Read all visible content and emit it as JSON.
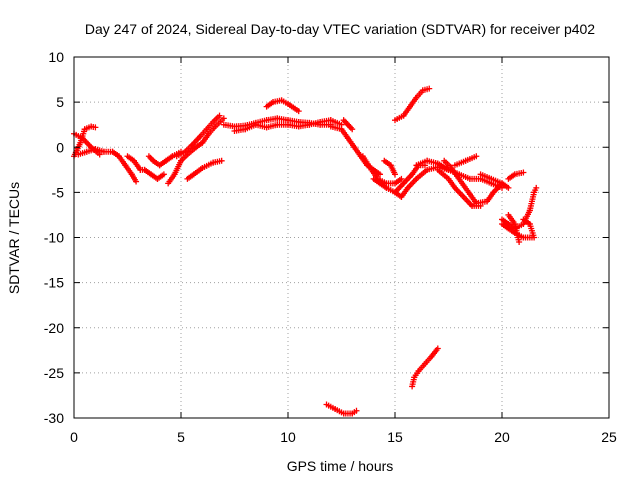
{
  "chart_data": {
    "type": "scatter",
    "title": "Day 247 of 2024, Sidereal Day-to-day VTEC variation (SDTVAR) for receiver p402",
    "xlabel": "GPS time / hours",
    "ylabel": "SDTVAR / TECUs",
    "xlim": [
      0,
      25
    ],
    "ylim": [
      -30,
      10
    ],
    "xticks": [
      "0",
      "5",
      "10",
      "15",
      "20",
      "25"
    ],
    "yticks": [
      "10",
      "5",
      "0",
      "-5",
      "-10",
      "-15",
      "-20",
      "-25",
      "-30"
    ],
    "grid": true,
    "marker": "+",
    "color": "#ff0000",
    "series": [
      {
        "name": "SDTVAR",
        "segments": [
          [
            [
              0.0,
              -1.0
            ],
            [
              0.3,
              0.5
            ],
            [
              0.5,
              2.0
            ],
            [
              0.8,
              2.3
            ],
            [
              1.0,
              2.2
            ]
          ],
          [
            [
              0.0,
              1.5
            ],
            [
              0.4,
              1.0
            ],
            [
              0.8,
              0.0
            ],
            [
              1.2,
              -0.8
            ]
          ],
          [
            [
              0.2,
              -0.8
            ],
            [
              0.6,
              -0.5
            ],
            [
              1.0,
              -0.2
            ],
            [
              1.4,
              -0.5
            ],
            [
              1.8,
              -0.5
            ]
          ],
          [
            [
              1.8,
              -0.5
            ],
            [
              2.1,
              -1.0
            ],
            [
              2.4,
              -2.0
            ],
            [
              2.7,
              -3.0
            ],
            [
              2.9,
              -3.8
            ]
          ],
          [
            [
              2.5,
              -1.0
            ],
            [
              2.8,
              -1.5
            ],
            [
              3.1,
              -2.5
            ],
            [
              3.3,
              -2.5
            ],
            [
              3.6,
              -3.0
            ],
            [
              3.9,
              -3.5
            ],
            [
              4.2,
              -3.0
            ]
          ],
          [
            [
              3.5,
              -1.0
            ],
            [
              3.7,
              -1.5
            ],
            [
              4.0,
              -2.0
            ],
            [
              4.3,
              -1.5
            ],
            [
              4.6,
              -1.0
            ],
            [
              5.0,
              -0.5
            ]
          ],
          [
            [
              4.4,
              -4.0
            ],
            [
              4.7,
              -3.0
            ],
            [
              5.0,
              -1.5
            ],
            [
              5.3,
              -0.8
            ],
            [
              5.7,
              0.0
            ],
            [
              6.0,
              0.5
            ],
            [
              6.3,
              1.5
            ],
            [
              6.6,
              2.3
            ],
            [
              7.0,
              3.2
            ]
          ],
          [
            [
              4.8,
              -1.0
            ],
            [
              5.2,
              -0.5
            ],
            [
              5.5,
              0.2
            ],
            [
              5.9,
              1.2
            ],
            [
              6.2,
              2.0
            ],
            [
              6.5,
              2.8
            ],
            [
              6.8,
              3.5
            ]
          ],
          [
            [
              5.3,
              -3.5
            ],
            [
              5.6,
              -3.0
            ],
            [
              6.0,
              -2.3
            ],
            [
              6.5,
              -1.7
            ],
            [
              6.9,
              -1.5
            ]
          ],
          [
            [
              7.0,
              2.5
            ],
            [
              7.5,
              2.3
            ],
            [
              8.0,
              2.4
            ],
            [
              8.5,
              2.7
            ],
            [
              9.0,
              3.0
            ],
            [
              9.5,
              3.2
            ],
            [
              10.0,
              3.0
            ],
            [
              10.5,
              2.8
            ],
            [
              11.0,
              2.7
            ],
            [
              11.5,
              2.5
            ],
            [
              12.0,
              2.5
            ]
          ],
          [
            [
              7.5,
              1.8
            ],
            [
              8.0,
              2.0
            ],
            [
              8.5,
              2.5
            ],
            [
              9.0,
              2.2
            ],
            [
              9.5,
              2.5
            ],
            [
              10.0,
              2.5
            ],
            [
              10.5,
              2.3
            ],
            [
              11.0,
              2.5
            ],
            [
              11.5,
              2.8
            ],
            [
              12.0,
              3.0
            ],
            [
              12.5,
              2.5
            ]
          ],
          [
            [
              9.0,
              4.5
            ],
            [
              9.3,
              5.0
            ],
            [
              9.7,
              5.2
            ],
            [
              10.0,
              4.8
            ],
            [
              10.5,
              4.0
            ]
          ],
          [
            [
              12.0,
              2.3
            ],
            [
              12.5,
              2.0
            ],
            [
              12.8,
              1.0
            ],
            [
              13.1,
              0.0
            ],
            [
              13.4,
              -1.0
            ],
            [
              13.7,
              -2.0
            ],
            [
              14.0,
              -2.5
            ],
            [
              14.3,
              -3.0
            ]
          ],
          [
            [
              12.6,
              3.0
            ],
            [
              12.8,
              2.5
            ],
            [
              13.0,
              2.0
            ]
          ],
          [
            [
              14.0,
              -3.5
            ],
            [
              14.3,
              -4.0
            ],
            [
              14.6,
              -4.5
            ],
            [
              15.0,
              -5.0
            ],
            [
              15.3,
              -5.5
            ],
            [
              15.6,
              -4.5
            ],
            [
              16.0,
              -3.5
            ],
            [
              16.5,
              -2.5
            ],
            [
              17.0,
              -2.2
            ],
            [
              17.5,
              -2.5
            ]
          ],
          [
            [
              13.5,
              -1.0
            ],
            [
              13.9,
              -2.5
            ],
            [
              14.2,
              -3.5
            ],
            [
              14.6,
              -4.0
            ],
            [
              15.0,
              -4.0
            ],
            [
              15.3,
              -3.5
            ]
          ],
          [
            [
              15.0,
              -5.0
            ],
            [
              15.4,
              -4.0
            ],
            [
              15.8,
              -3.0
            ],
            [
              16.1,
              -2.0
            ],
            [
              16.4,
              -2.0
            ]
          ],
          [
            [
              14.5,
              -1.5
            ],
            [
              14.8,
              -2.0
            ],
            [
              15.0,
              -3.0
            ]
          ],
          [
            [
              15.0,
              3.0
            ],
            [
              15.4,
              3.5
            ],
            [
              15.7,
              4.5
            ],
            [
              16.0,
              5.5
            ],
            [
              16.3,
              6.3
            ],
            [
              16.6,
              6.5
            ]
          ],
          [
            [
              16.0,
              -2.0
            ],
            [
              16.5,
              -1.5
            ],
            [
              17.0,
              -1.8
            ],
            [
              17.5,
              -2.5
            ],
            [
              18.0,
              -3.0
            ],
            [
              18.5,
              -3.5
            ],
            [
              19.0,
              -3.5
            ],
            [
              19.5,
              -4.0
            ],
            [
              20.0,
              -4.5
            ]
          ],
          [
            [
              17.0,
              -2.5
            ],
            [
              17.5,
              -3.5
            ],
            [
              17.8,
              -4.5
            ],
            [
              18.2,
              -5.5
            ],
            [
              18.6,
              -6.5
            ],
            [
              19.0,
              -6.5
            ]
          ],
          [
            [
              17.3,
              -1.5
            ],
            [
              17.6,
              -2.2
            ],
            [
              17.9,
              -3.2
            ],
            [
              18.2,
              -4.2
            ],
            [
              18.5,
              -5.2
            ],
            [
              18.8,
              -6.2
            ],
            [
              19.3,
              -6.0
            ]
          ],
          [
            [
              17.8,
              -2.0
            ],
            [
              18.3,
              -1.5
            ],
            [
              18.8,
              -1.0
            ]
          ],
          [
            [
              19.0,
              -3.0
            ],
            [
              19.5,
              -3.5
            ],
            [
              20.0,
              -4.0
            ],
            [
              20.3,
              -4.5
            ]
          ],
          [
            [
              19.3,
              -6.0
            ],
            [
              19.6,
              -5.0
            ],
            [
              19.8,
              -4.5
            ],
            [
              20.0,
              -4.0
            ]
          ],
          [
            [
              20.0,
              -8.5
            ],
            [
              20.3,
              -9.0
            ],
            [
              20.6,
              -9.5
            ],
            [
              21.0,
              -10.0
            ],
            [
              21.4,
              -10.0
            ]
          ],
          [
            [
              20.0,
              -8.0
            ],
            [
              20.3,
              -8.5
            ],
            [
              20.6,
              -9.0
            ],
            [
              21.0,
              -8.5
            ],
            [
              21.3,
              -7.0
            ],
            [
              21.5,
              -5.0
            ],
            [
              21.6,
              -4.5
            ]
          ],
          [
            [
              20.3,
              -7.5
            ],
            [
              20.6,
              -8.5
            ],
            [
              20.8,
              -10.5
            ]
          ],
          [
            [
              20.3,
              -3.5
            ],
            [
              20.6,
              -3.0
            ],
            [
              21.0,
              -2.8
            ]
          ],
          [
            [
              21.0,
              -8.0
            ],
            [
              21.3,
              -8.5
            ],
            [
              21.5,
              -10.0
            ]
          ],
          [
            [
              11.8,
              -28.5
            ],
            [
              12.2,
              -29.0
            ],
            [
              12.6,
              -29.5
            ],
            [
              13.0,
              -29.5
            ],
            [
              13.2,
              -29.2
            ]
          ],
          [
            [
              15.8,
              -26.5
            ],
            [
              15.9,
              -25.5
            ],
            [
              16.1,
              -24.8
            ],
            [
              16.4,
              -24.0
            ],
            [
              16.7,
              -23.2
            ],
            [
              17.0,
              -22.3
            ]
          ]
        ]
      }
    ]
  }
}
